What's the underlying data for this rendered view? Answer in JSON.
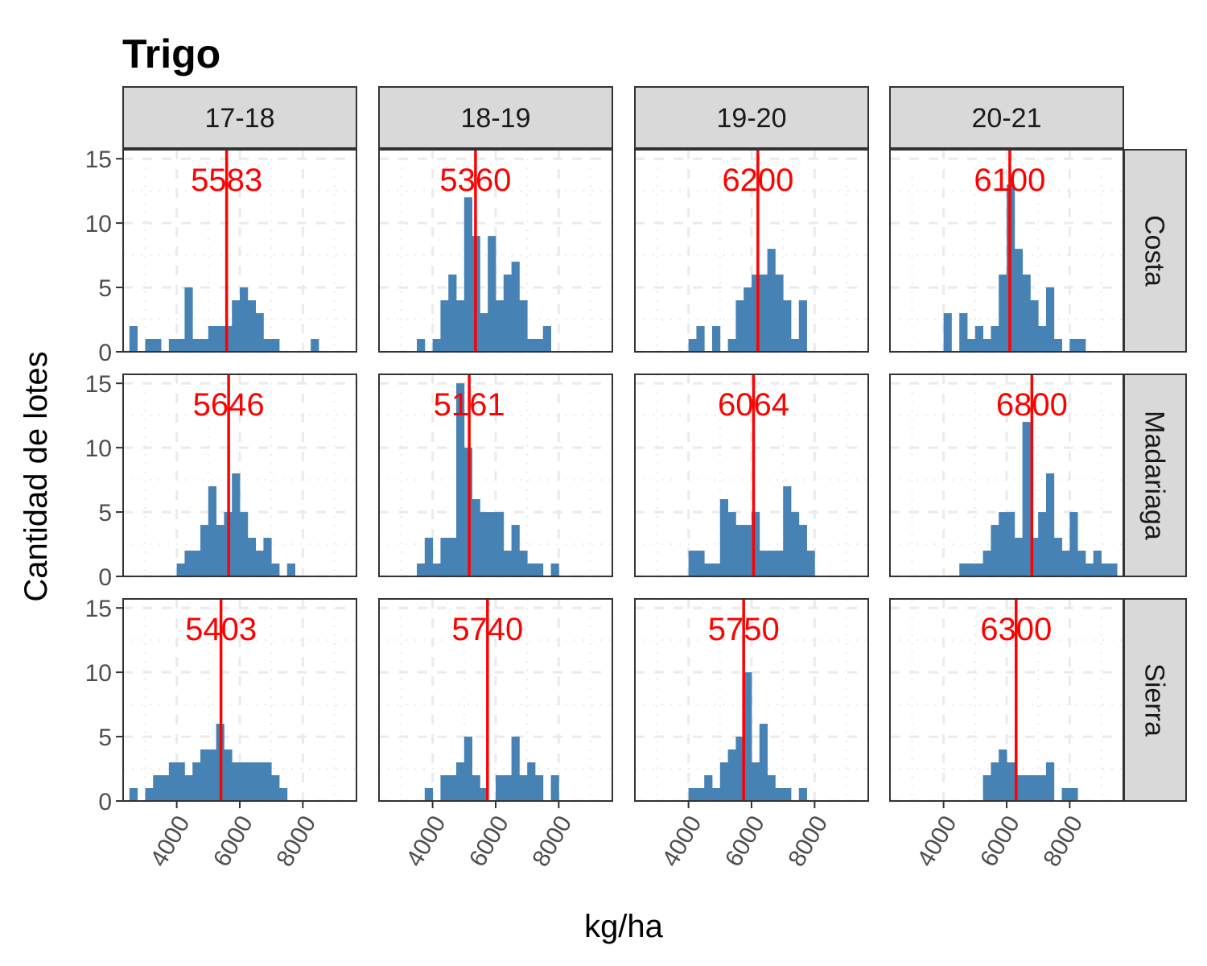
{
  "chart_data": {
    "type": "bar",
    "title": "Trigo",
    "xlabel": "kg/ha",
    "ylabel": "Cantidad de lotes",
    "x_ticks": [
      4000,
      6000,
      8000
    ],
    "y_ticks": [
      0,
      5,
      10,
      15
    ],
    "xlim": [
      2300,
      9700
    ],
    "ylim": [
      0,
      15.7
    ],
    "bin_width": 250,
    "grid": true,
    "legend": "none",
    "colors": {
      "bar": "#4682B4",
      "median": "#FF0000",
      "strip": "#D9D9D9",
      "grid": "#EBEBEB"
    },
    "columns": [
      "17-18",
      "18-19",
      "19-20",
      "20-21"
    ],
    "rows": [
      "Costa",
      "Madariaga",
      "Sierra"
    ],
    "panels": [
      {
        "column": "17-18",
        "row": "Costa",
        "median": 5583,
        "median_label": "5583",
        "bins": [
          [
            2625,
            2
          ],
          [
            3125,
            1
          ],
          [
            3375,
            1
          ],
          [
            3875,
            1
          ],
          [
            4125,
            1
          ],
          [
            4375,
            5
          ],
          [
            4625,
            1
          ],
          [
            4875,
            1
          ],
          [
            5125,
            2
          ],
          [
            5375,
            2
          ],
          [
            5625,
            2
          ],
          [
            5875,
            4
          ],
          [
            6125,
            5
          ],
          [
            6375,
            4
          ],
          [
            6625,
            3
          ],
          [
            6875,
            1
          ],
          [
            7125,
            1
          ],
          [
            8375,
            1
          ]
        ]
      },
      {
        "column": "18-19",
        "row": "Costa",
        "median": 5360,
        "median_label": "5360",
        "bins": [
          [
            3625,
            1
          ],
          [
            4125,
            1
          ],
          [
            4375,
            4
          ],
          [
            4625,
            6
          ],
          [
            4875,
            4
          ],
          [
            5125,
            12
          ],
          [
            5375,
            9
          ],
          [
            5625,
            3
          ],
          [
            5875,
            9
          ],
          [
            6125,
            4
          ],
          [
            6375,
            6
          ],
          [
            6625,
            7
          ],
          [
            6875,
            4
          ],
          [
            7125,
            1
          ],
          [
            7375,
            1
          ],
          [
            7625,
            2
          ]
        ]
      },
      {
        "column": "19-20",
        "row": "Costa",
        "median": 6200,
        "median_label": "6200",
        "bins": [
          [
            4125,
            1
          ],
          [
            4375,
            2
          ],
          [
            4875,
            2
          ],
          [
            5375,
            1
          ],
          [
            5625,
            4
          ],
          [
            5875,
            5
          ],
          [
            6125,
            6
          ],
          [
            6375,
            6
          ],
          [
            6625,
            8
          ],
          [
            6875,
            6
          ],
          [
            7125,
            4
          ],
          [
            7375,
            1
          ],
          [
            7625,
            4
          ]
        ]
      },
      {
        "column": "20-21",
        "row": "Costa",
        "median": 6100,
        "median_label": "6100",
        "bins": [
          [
            4125,
            3
          ],
          [
            4625,
            3
          ],
          [
            4875,
            1
          ],
          [
            5125,
            2
          ],
          [
            5375,
            1
          ],
          [
            5625,
            2
          ],
          [
            5875,
            6
          ],
          [
            6125,
            13
          ],
          [
            6375,
            8
          ],
          [
            6625,
            6
          ],
          [
            6875,
            4
          ],
          [
            7125,
            2
          ],
          [
            7375,
            5
          ],
          [
            7625,
            1
          ],
          [
            8125,
            1
          ],
          [
            8375,
            1
          ]
        ]
      },
      {
        "column": "17-18",
        "row": "Madariaga",
        "median": 5646,
        "median_label": "5646",
        "bins": [
          [
            4125,
            1
          ],
          [
            4375,
            2
          ],
          [
            4625,
            2
          ],
          [
            4875,
            4
          ],
          [
            5125,
            7
          ],
          [
            5375,
            4
          ],
          [
            5625,
            5
          ],
          [
            5875,
            8
          ],
          [
            6125,
            5
          ],
          [
            6375,
            3
          ],
          [
            6625,
            2
          ],
          [
            6875,
            3
          ],
          [
            7125,
            1
          ],
          [
            7625,
            1
          ]
        ]
      },
      {
        "column": "18-19",
        "row": "Madariaga",
        "median": 5161,
        "median_label": "5161",
        "bins": [
          [
            3625,
            1
          ],
          [
            3875,
            3
          ],
          [
            4125,
            1
          ],
          [
            4375,
            3
          ],
          [
            4625,
            3
          ],
          [
            4875,
            15
          ],
          [
            5125,
            10
          ],
          [
            5375,
            6
          ],
          [
            5625,
            5
          ],
          [
            5875,
            5
          ],
          [
            6125,
            5
          ],
          [
            6375,
            2
          ],
          [
            6625,
            4
          ],
          [
            6875,
            2
          ],
          [
            7125,
            1
          ],
          [
            7375,
            1
          ],
          [
            7875,
            1
          ]
        ]
      },
      {
        "column": "19-20",
        "row": "Madariaga",
        "median": 6064,
        "median_label": "6064",
        "bins": [
          [
            4125,
            2
          ],
          [
            4375,
            2
          ],
          [
            4625,
            1
          ],
          [
            4875,
            1
          ],
          [
            5125,
            6
          ],
          [
            5375,
            5
          ],
          [
            5625,
            4
          ],
          [
            5875,
            4
          ],
          [
            6125,
            5
          ],
          [
            6375,
            2
          ],
          [
            6625,
            2
          ],
          [
            6875,
            2
          ],
          [
            7125,
            7
          ],
          [
            7375,
            5
          ],
          [
            7625,
            4
          ],
          [
            7875,
            2
          ]
        ]
      },
      {
        "column": "20-21",
        "row": "Madariaga",
        "median": 6800,
        "median_label": "6800",
        "bins": [
          [
            4625,
            1
          ],
          [
            4875,
            1
          ],
          [
            5125,
            1
          ],
          [
            5375,
            2
          ],
          [
            5625,
            4
          ],
          [
            5875,
            5
          ],
          [
            6125,
            5
          ],
          [
            6375,
            3
          ],
          [
            6625,
            12
          ],
          [
            6875,
            3
          ],
          [
            7125,
            5
          ],
          [
            7375,
            8
          ],
          [
            7625,
            3
          ],
          [
            7875,
            2
          ],
          [
            8125,
            5
          ],
          [
            8375,
            2
          ],
          [
            8625,
            1
          ],
          [
            8875,
            2
          ],
          [
            9125,
            1
          ],
          [
            9375,
            1
          ]
        ]
      },
      {
        "column": "17-18",
        "row": "Sierra",
        "median": 5403,
        "median_label": "5403",
        "bins": [
          [
            2625,
            1
          ],
          [
            3125,
            1
          ],
          [
            3375,
            2
          ],
          [
            3625,
            2
          ],
          [
            3875,
            3
          ],
          [
            4125,
            3
          ],
          [
            4375,
            2
          ],
          [
            4625,
            3
          ],
          [
            4875,
            4
          ],
          [
            5125,
            4
          ],
          [
            5375,
            6
          ],
          [
            5625,
            4
          ],
          [
            5875,
            3
          ],
          [
            6125,
            3
          ],
          [
            6375,
            3
          ],
          [
            6625,
            3
          ],
          [
            6875,
            3
          ],
          [
            7125,
            2
          ],
          [
            7375,
            1
          ]
        ]
      },
      {
        "column": "18-19",
        "row": "Sierra",
        "median": 5740,
        "median_label": "5740",
        "bins": [
          [
            3875,
            1
          ],
          [
            4375,
            2
          ],
          [
            4625,
            2
          ],
          [
            4875,
            3
          ],
          [
            5125,
            5
          ],
          [
            5375,
            2
          ],
          [
            5625,
            1
          ],
          [
            6125,
            2
          ],
          [
            6375,
            2
          ],
          [
            6625,
            5
          ],
          [
            6875,
            2
          ],
          [
            7125,
            3
          ],
          [
            7375,
            2
          ],
          [
            7875,
            2
          ]
        ]
      },
      {
        "column": "19-20",
        "row": "Sierra",
        "median": 5750,
        "median_label": "5750",
        "bins": [
          [
            4125,
            1
          ],
          [
            4375,
            1
          ],
          [
            4625,
            2
          ],
          [
            4875,
            1
          ],
          [
            5125,
            3
          ],
          [
            5375,
            4
          ],
          [
            5625,
            5
          ],
          [
            5875,
            10
          ],
          [
            6125,
            3
          ],
          [
            6375,
            6
          ],
          [
            6625,
            2
          ],
          [
            6875,
            1
          ],
          [
            7125,
            1
          ],
          [
            7625,
            1
          ]
        ]
      },
      {
        "column": "20-21",
        "row": "Sierra",
        "median": 6300,
        "median_label": "6300",
        "bins": [
          [
            5375,
            2
          ],
          [
            5625,
            3
          ],
          [
            5875,
            4
          ],
          [
            6125,
            3
          ],
          [
            6375,
            2
          ],
          [
            6625,
            2
          ],
          [
            6875,
            2
          ],
          [
            7125,
            2
          ],
          [
            7375,
            3
          ],
          [
            7875,
            1
          ],
          [
            8125,
            1
          ]
        ]
      }
    ]
  }
}
